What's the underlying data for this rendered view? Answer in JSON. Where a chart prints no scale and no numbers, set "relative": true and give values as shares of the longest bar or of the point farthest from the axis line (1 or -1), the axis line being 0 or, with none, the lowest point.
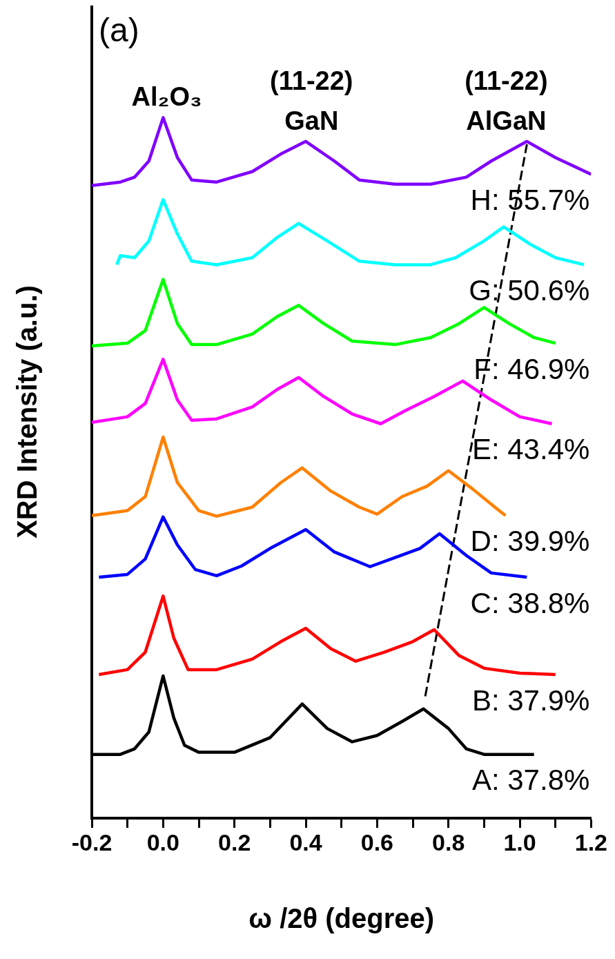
{
  "chart_data": {
    "type": "line",
    "relative": true,
    "xlabel": "ω /2θ (degree)",
    "ylabel": "XRD Intensity (a.u.)",
    "xlim": [
      -0.2,
      1.2
    ],
    "xticks": [
      -0.2,
      {
        "value": -0.1,
        "label": null
      },
      {
        "value": 0,
        "label": "0.0"
      },
      {
        "value": 0.1,
        "label": null
      },
      0.2,
      {
        "value": 0.3,
        "label": null
      },
      0.4,
      {
        "value": 0.5,
        "label": null
      },
      0.6,
      {
        "value": 0.7,
        "label": null
      },
      0.8,
      {
        "value": 0.9,
        "label": null
      },
      {
        "value": 1,
        "label": "1.0"
      },
      {
        "value": 1.1,
        "label": null
      },
      1.2
    ],
    "grid": false,
    "legend": false,
    "annotations": [
      "(a)",
      "Al₂O₃",
      "(11-22)\nGaN",
      "(11-22)\nAlGaN"
    ],
    "series": [
      {
        "name": "A: 37.8%",
        "color": "#000000",
        "x": [
          -0.2,
          -0.12,
          -0.08,
          -0.04,
          0.0,
          0.03,
          0.06,
          0.1,
          0.2,
          0.3,
          0.39,
          0.46,
          0.53,
          0.6,
          0.67,
          0.73,
          0.8,
          0.85,
          0.9,
          1.04
        ],
        "values": [
          0.091,
          0.091,
          0.099,
          0.123,
          0.203,
          0.143,
          0.104,
          0.094,
          0.094,
          0.115,
          0.163,
          0.128,
          0.109,
          0.118,
          0.138,
          0.156,
          0.128,
          0.099,
          0.091,
          0.091
        ]
      },
      {
        "name": "B: 37.9%",
        "color": "#ff0000",
        "x": [
          -0.18,
          -0.1,
          -0.05,
          0.0,
          0.03,
          0.07,
          0.15,
          0.25,
          0.33,
          0.4,
          0.47,
          0.54,
          0.62,
          0.7,
          0.76,
          0.83,
          0.9,
          1.0,
          1.1
        ],
        "values": [
          0.205,
          0.212,
          0.237,
          0.317,
          0.257,
          0.212,
          0.212,
          0.227,
          0.252,
          0.271,
          0.242,
          0.224,
          0.237,
          0.252,
          0.269,
          0.232,
          0.214,
          0.207,
          0.205
        ]
      },
      {
        "name": "C: 38.8%",
        "color": "#0000ff",
        "x": [
          -0.18,
          -0.1,
          -0.05,
          0.0,
          0.04,
          0.09,
          0.15,
          0.22,
          0.3,
          0.4,
          0.48,
          0.58,
          0.65,
          0.72,
          0.775,
          0.85,
          0.92,
          1.02
        ],
        "values": [
          0.344,
          0.348,
          0.37,
          0.43,
          0.39,
          0.355,
          0.346,
          0.36,
          0.385,
          0.412,
          0.38,
          0.359,
          0.372,
          0.385,
          0.406,
          0.375,
          0.35,
          0.344
        ]
      },
      {
        "name": "D: 39.9%",
        "color": "#ff8000",
        "x": [
          -0.2,
          -0.1,
          -0.05,
          0.0,
          0.04,
          0.1,
          0.15,
          0.25,
          0.33,
          0.39,
          0.47,
          0.55,
          0.6,
          0.67,
          0.74,
          0.8,
          0.87,
          0.93,
          0.96
        ],
        "values": [
          0.432,
          0.439,
          0.459,
          0.544,
          0.479,
          0.439,
          0.431,
          0.444,
          0.479,
          0.5,
          0.467,
          0.444,
          0.434,
          0.459,
          0.474,
          0.496,
          0.469,
          0.444,
          0.432
        ]
      },
      {
        "name": "E: 43.4%",
        "color": "#ff00ff",
        "x": [
          -0.2,
          -0.1,
          -0.05,
          0.0,
          0.04,
          0.08,
          0.15,
          0.25,
          0.32,
          0.38,
          0.45,
          0.53,
          0.61,
          0.68,
          0.76,
          0.84,
          0.92,
          1.0,
          1.09
        ],
        "values": [
          0.565,
          0.573,
          0.592,
          0.655,
          0.597,
          0.568,
          0.57,
          0.587,
          0.612,
          0.629,
          0.602,
          0.577,
          0.563,
          0.582,
          0.602,
          0.624,
          0.597,
          0.573,
          0.563
        ]
      },
      {
        "name": "F: 46.9%",
        "color": "#00ff00",
        "x": [
          -0.2,
          -0.1,
          -0.05,
          0.0,
          0.04,
          0.08,
          0.15,
          0.25,
          0.32,
          0.38,
          0.45,
          0.53,
          0.65,
          0.75,
          0.83,
          0.9,
          0.97,
          1.04,
          1.1
        ],
        "values": [
          0.674,
          0.678,
          0.696,
          0.769,
          0.706,
          0.676,
          0.676,
          0.691,
          0.716,
          0.732,
          0.706,
          0.681,
          0.676,
          0.686,
          0.706,
          0.729,
          0.706,
          0.686,
          0.678
        ]
      },
      {
        "name": "G: 50.6%",
        "color": "#00ffff",
        "x": [
          -0.13,
          -0.12,
          -0.08,
          -0.04,
          0.0,
          0.04,
          0.08,
          0.15,
          0.25,
          0.32,
          0.38,
          0.46,
          0.55,
          0.65,
          0.75,
          0.82,
          0.9,
          0.955,
          1.03,
          1.1,
          1.18
        ],
        "values": [
          0.79,
          0.803,
          0.8,
          0.824,
          0.883,
          0.834,
          0.795,
          0.79,
          0.8,
          0.829,
          0.849,
          0.824,
          0.795,
          0.79,
          0.79,
          0.8,
          0.824,
          0.844,
          0.819,
          0.8,
          0.79
        ]
      },
      {
        "name": "H: 55.7%",
        "color": "#8000ff",
        "x": [
          -0.2,
          -0.12,
          -0.08,
          -0.04,
          0.0,
          0.04,
          0.08,
          0.15,
          0.25,
          0.33,
          0.4,
          0.48,
          0.55,
          0.65,
          0.75,
          0.85,
          0.92,
          1.02,
          1.1,
          1.2
        ],
        "values": [
          0.903,
          0.908,
          0.915,
          0.938,
          1.0,
          0.943,
          0.911,
          0.908,
          0.923,
          0.948,
          0.966,
          0.938,
          0.911,
          0.905,
          0.905,
          0.915,
          0.938,
          0.966,
          0.943,
          0.919
        ]
      },
      {
        "type": "line",
        "color": "#000000",
        "line_style": "dashed",
        "x": [
          0.735,
          1.02
        ],
        "values": [
          0.174,
          0.962
        ]
      }
    ]
  }
}
